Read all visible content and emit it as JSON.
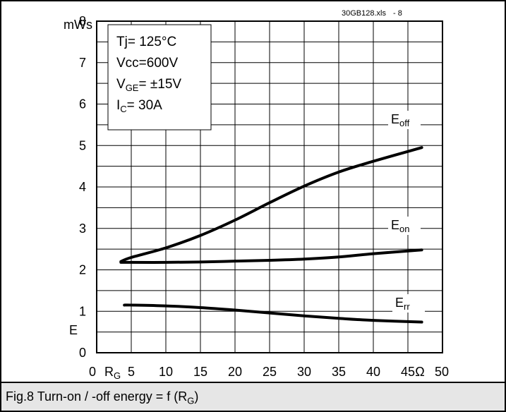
{
  "source_tag": {
    "file": "30GB128.xls",
    "page": "- 8"
  },
  "caption": {
    "prefix": "Fig.8 Turn-on / -off energy = f (R",
    "sub": "G",
    "suffix": ")"
  },
  "conditions": [
    {
      "main": "Tj= 125°C",
      "sub": "",
      "rest": ""
    },
    {
      "main": "Vcc=600V",
      "sub": "",
      "rest": ""
    },
    {
      "main": "V",
      "sub": "GE",
      "rest": "= ±15V"
    },
    {
      "main": "I",
      "sub": "C",
      "rest": "= 30A"
    }
  ],
  "chart_data": {
    "type": "line",
    "title": "",
    "xlabel": "R",
    "xlabel_sub": "G",
    "x_unit": "Ω",
    "ylabel": "E",
    "y_unit": "mWs",
    "xlim": [
      0,
      50
    ],
    "ylim": [
      0,
      8
    ],
    "x_ticks": [
      0,
      5,
      10,
      15,
      20,
      25,
      30,
      35,
      40,
      45,
      50
    ],
    "y_ticks": [
      0,
      1,
      2,
      3,
      4,
      5,
      6,
      7,
      8
    ],
    "grid": true,
    "series": [
      {
        "name": "E",
        "name_sub": "off",
        "x": [
          3.5,
          5,
          10,
          15,
          20,
          25,
          30,
          35,
          40,
          47
        ],
        "y": [
          2.2,
          2.3,
          2.53,
          2.83,
          3.2,
          3.62,
          4.02,
          4.36,
          4.62,
          4.95
        ]
      },
      {
        "name": "E",
        "name_sub": "on",
        "x": [
          3.5,
          5,
          10,
          15,
          20,
          25,
          30,
          35,
          40,
          47
        ],
        "y": [
          2.18,
          2.18,
          2.18,
          2.19,
          2.21,
          2.23,
          2.26,
          2.31,
          2.39,
          2.48
        ]
      },
      {
        "name": "E",
        "name_sub": "rr",
        "x": [
          4,
          5,
          10,
          15,
          20,
          25,
          30,
          35,
          40,
          47
        ],
        "y": [
          1.15,
          1.15,
          1.13,
          1.09,
          1.03,
          0.96,
          0.89,
          0.83,
          0.78,
          0.74
        ]
      }
    ]
  }
}
